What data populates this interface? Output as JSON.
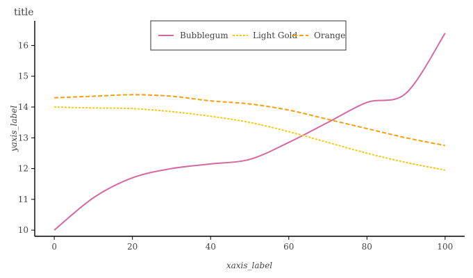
{
  "chart_data": {
    "type": "line",
    "title": "title",
    "xlabel": "xaxis_label",
    "ylabel": "yaxis_label",
    "xlim": [
      -5,
      105
    ],
    "ylim": [
      9.8,
      16.8
    ],
    "x_ticks": [
      0,
      20,
      40,
      60,
      80,
      100
    ],
    "x_tick_labels": [
      "0",
      "20",
      "40",
      "60",
      "80",
      "100"
    ],
    "y_ticks": [
      10,
      11,
      12,
      13,
      14,
      15,
      16
    ],
    "y_tick_labels": [
      "10",
      "11",
      "12",
      "13",
      "14",
      "15",
      "16"
    ],
    "grid": false,
    "legend_position": "top-center",
    "legend": [
      "Bubblegum",
      "Light Gold",
      "Orange"
    ],
    "x": [
      0,
      10,
      20,
      30,
      40,
      50,
      60,
      70,
      80,
      90,
      100
    ],
    "series": [
      {
        "name": "Bubblegum",
        "color": "#d4699f",
        "values": [
          10.0,
          11.05,
          11.7,
          12.0,
          12.15,
          12.3,
          12.85,
          13.5,
          14.15,
          14.45,
          16.4
        ]
      },
      {
        "name": "Light Gold",
        "color": "#f9c811",
        "values": [
          14.0,
          13.97,
          13.95,
          13.85,
          13.7,
          13.5,
          13.2,
          12.85,
          12.5,
          12.2,
          11.95
        ]
      },
      {
        "name": "Orange",
        "color": "#f4a00f",
        "values": [
          14.3,
          14.35,
          14.4,
          14.35,
          14.2,
          14.1,
          13.9,
          13.6,
          13.3,
          13.0,
          12.75
        ]
      }
    ]
  }
}
